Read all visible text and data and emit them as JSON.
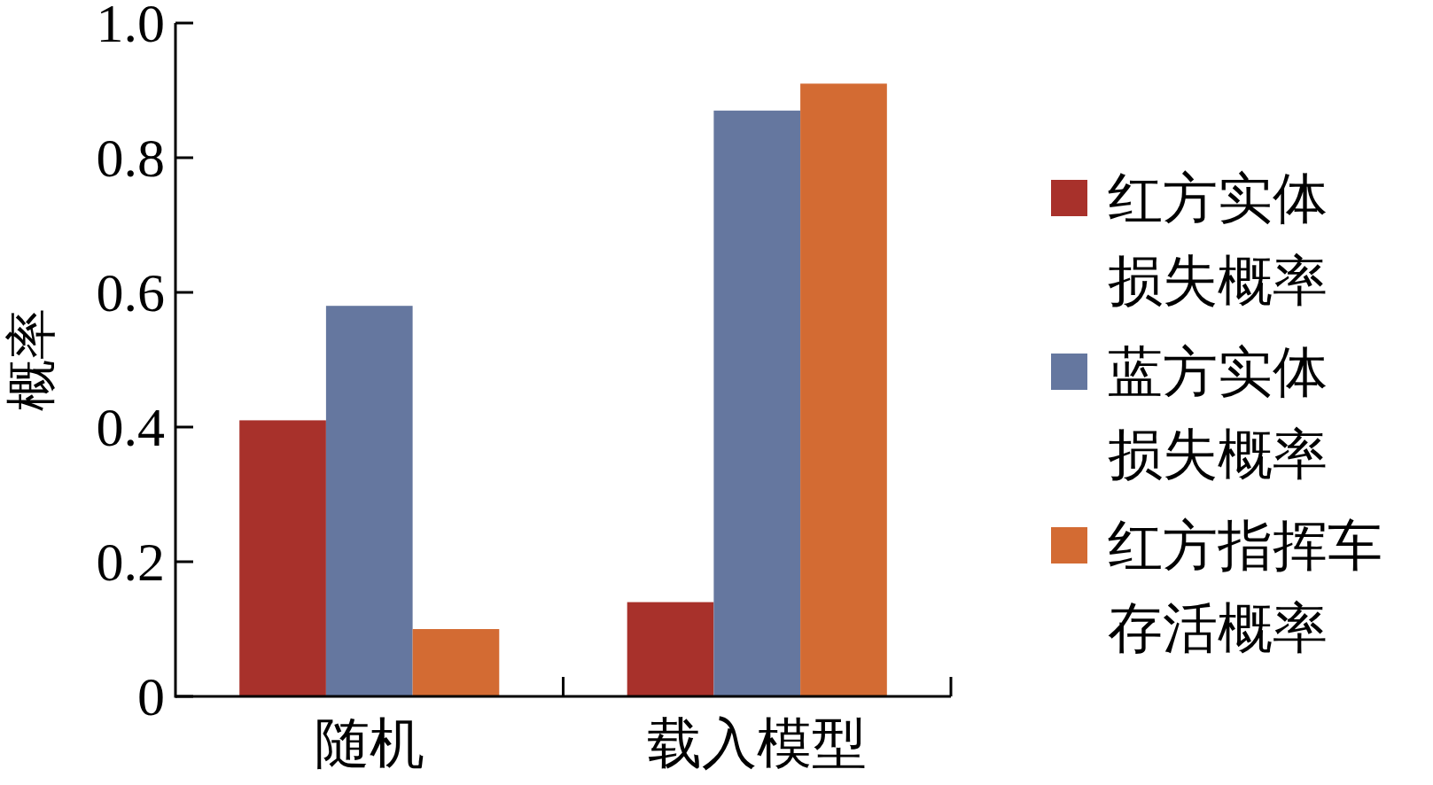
{
  "chart_data": {
    "type": "bar",
    "ylabel": "概率",
    "categories": [
      "随机",
      "载入模型"
    ],
    "series": [
      {
        "name": "红方实体损失概率",
        "color": "#a8312b",
        "values": [
          0.41,
          0.14
        ]
      },
      {
        "name": "蓝方实体损失概率",
        "color": "#65779f",
        "values": [
          0.58,
          0.87
        ]
      },
      {
        "name": "红方指挥车存活概率",
        "color": "#d36b33",
        "values": [
          0.1,
          0.91
        ]
      }
    ],
    "ylim": [
      0,
      1.0
    ],
    "yticks": [
      {
        "value": 0,
        "label": "0"
      },
      0.2,
      0.4,
      0.6,
      0.8,
      {
        "value": 1.0,
        "label": "1.0"
      }
    ],
    "grid": false,
    "legend": "right"
  }
}
